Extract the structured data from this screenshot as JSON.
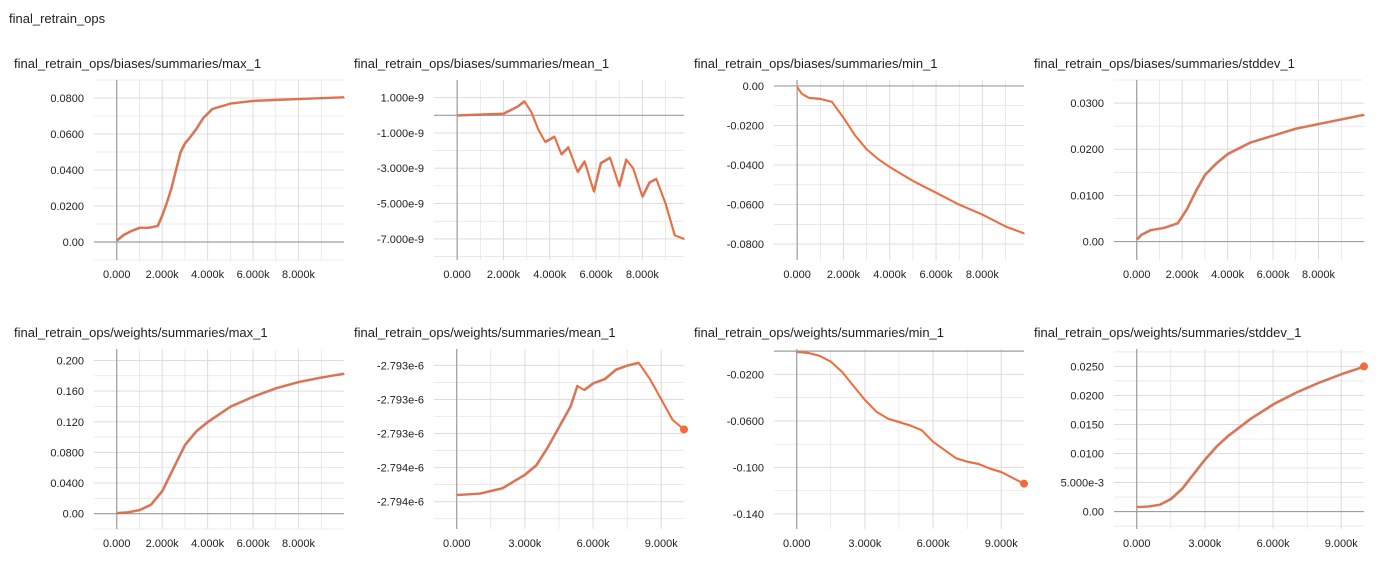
{
  "page": {
    "group_title": "final_retrain_ops"
  },
  "theme": {
    "line_color": "#f26b3a",
    "shadow_color": "#3b6ea8",
    "grid_color": "#dddddd",
    "axis_color": "#9e9e9e"
  },
  "chart_data": [
    {
      "type": "line",
      "title": "final_retrain_ops/biases/summaries/max_1",
      "xlim": [
        -1000,
        10000
      ],
      "ylim": [
        -0.01,
        0.09
      ],
      "xticks": [
        0,
        2000,
        4000,
        6000,
        8000
      ],
      "xtick_labels": [
        "0.000",
        "2.000k",
        "4.000k",
        "6.000k",
        "8.000k"
      ],
      "yticks": [
        0,
        0.02,
        0.04,
        0.06,
        0.08
      ],
      "ytick_labels": [
        "0.00",
        "0.0200",
        "0.0400",
        "0.0600",
        "0.0800"
      ],
      "end_marker": false,
      "series": [
        {
          "x": [
            0,
            300,
            600,
            1000,
            1400,
            1800,
            2000,
            2200,
            2400,
            2600,
            2800,
            3000,
            3200,
            3500,
            3800,
            4200,
            5000,
            6000,
            7000,
            8000,
            9000,
            10000
          ],
          "y": [
            0.001,
            0.004,
            0.006,
            0.008,
            0.008,
            0.009,
            0.015,
            0.022,
            0.03,
            0.04,
            0.05,
            0.055,
            0.058,
            0.063,
            0.069,
            0.074,
            0.077,
            0.0785,
            0.079,
            0.0795,
            0.08,
            0.0805
          ]
        }
      ]
    },
    {
      "type": "line",
      "title": "final_retrain_ops/biases/summaries/mean_1",
      "xlim": [
        -1000,
        9800
      ],
      "ylim": [
        -8.2e-09,
        2e-09
      ],
      "xticks": [
        0,
        2000,
        4000,
        6000,
        8000
      ],
      "xtick_labels": [
        "0.000",
        "2.000k",
        "4.000k",
        "6.000k",
        "8.000k"
      ],
      "yticks": [
        1e-09,
        -1e-09,
        -3e-09,
        -5e-09,
        -7e-09
      ],
      "ytick_labels": [
        "1.000e-9",
        "-1.000e-9",
        "-3.000e-9",
        "-5.000e-9",
        "-7.000e-9"
      ],
      "end_marker": false,
      "series": [
        {
          "x": [
            0,
            1000,
            2000,
            2600,
            2900,
            3200,
            3500,
            3800,
            4200,
            4500,
            4800,
            5200,
            5500,
            5900,
            6200,
            6600,
            7000,
            7300,
            7600,
            8000,
            8300,
            8600,
            9000,
            9400,
            9800
          ],
          "y": [
            0,
            5e-11,
            1e-10,
            5e-10,
            8e-10,
            2e-10,
            -8e-10,
            -1.5e-09,
            -1.2e-09,
            -2.2e-09,
            -1.8e-09,
            -3.2e-09,
            -2.6e-09,
            -4.3e-09,
            -2.7e-09,
            -2.4e-09,
            -4e-09,
            -2.5e-09,
            -3e-09,
            -4.6e-09,
            -3.8e-09,
            -3.6e-09,
            -5e-09,
            -6.8e-09,
            -7e-09
          ]
        }
      ]
    },
    {
      "type": "line",
      "title": "final_retrain_ops/biases/summaries/min_1",
      "xlim": [
        -1000,
        9800
      ],
      "ylim": [
        -0.088,
        0.003
      ],
      "xticks": [
        0,
        2000,
        4000,
        6000,
        8000
      ],
      "xtick_labels": [
        "0.000",
        "2.000k",
        "4.000k",
        "6.000k",
        "8.000k"
      ],
      "yticks": [
        0,
        -0.02,
        -0.04,
        -0.06,
        -0.08
      ],
      "ytick_labels": [
        "0.00",
        "-0.0200",
        "-0.0400",
        "-0.0600",
        "-0.0800"
      ],
      "end_marker": false,
      "series": [
        {
          "x": [
            0,
            200,
            500,
            1000,
            1500,
            2000,
            2500,
            3000,
            3500,
            4000,
            5000,
            6000,
            7000,
            8000,
            9000,
            9800
          ],
          "y": [
            -0.0005,
            -0.004,
            -0.006,
            -0.0065,
            -0.008,
            -0.016,
            -0.025,
            -0.032,
            -0.037,
            -0.041,
            -0.048,
            -0.054,
            -0.06,
            -0.065,
            -0.071,
            -0.0745
          ]
        }
      ]
    },
    {
      "type": "line",
      "title": "final_retrain_ops/biases/summaries/stddev_1",
      "xlim": [
        -1000,
        10000
      ],
      "ylim": [
        -0.004,
        0.035
      ],
      "xticks": [
        0,
        2000,
        4000,
        6000,
        8000
      ],
      "xtick_labels": [
        "0.000",
        "2.000k",
        "4.000k",
        "6.000k",
        "8.000k"
      ],
      "yticks": [
        0,
        0.01,
        0.02,
        0.03
      ],
      "ytick_labels": [
        "0.00",
        "0.0100",
        "0.0200",
        "0.0300"
      ],
      "end_marker": false,
      "series": [
        {
          "x": [
            0,
            200,
            600,
            1200,
            1800,
            2200,
            2600,
            3000,
            3500,
            4000,
            5000,
            6000,
            7000,
            8000,
            9000,
            10000
          ],
          "y": [
            0.0005,
            0.0015,
            0.0025,
            0.003,
            0.004,
            0.007,
            0.011,
            0.0145,
            0.017,
            0.019,
            0.0215,
            0.023,
            0.0245,
            0.0255,
            0.0265,
            0.0275
          ]
        }
      ]
    },
    {
      "type": "line",
      "title": "final_retrain_ops/weights/summaries/max_1",
      "xlim": [
        -1000,
        10000
      ],
      "ylim": [
        -0.02,
        0.215
      ],
      "xticks": [
        0,
        2000,
        4000,
        6000,
        8000
      ],
      "xtick_labels": [
        "0.000",
        "2.000k",
        "4.000k",
        "6.000k",
        "8.000k"
      ],
      "yticks": [
        0,
        0.04,
        0.08,
        0.12,
        0.16,
        0.2
      ],
      "ytick_labels": [
        "0.00",
        "0.0400",
        "0.0800",
        "0.120",
        "0.160",
        "0.200"
      ],
      "end_marker": false,
      "series": [
        {
          "x": [
            0,
            500,
            1000,
            1500,
            2000,
            2500,
            3000,
            3500,
            4000,
            5000,
            6000,
            7000,
            8000,
            9000,
            10000
          ],
          "y": [
            0.001,
            0.002,
            0.005,
            0.012,
            0.03,
            0.06,
            0.09,
            0.108,
            0.12,
            0.14,
            0.153,
            0.164,
            0.172,
            0.178,
            0.183
          ]
        }
      ]
    },
    {
      "type": "line",
      "title": "final_retrain_ops/weights/summaries/mean_1",
      "xlim": [
        -1000,
        10000
      ],
      "ylim": [
        -2.79415e-06,
        -2.79283e-06
      ],
      "xticks": [
        0,
        3000,
        6000,
        9000
      ],
      "xtick_labels": [
        "0.000",
        "3.000k",
        "6.000k",
        "9.000k"
      ],
      "yticks": [
        -2.79295e-06,
        -2.7932e-06,
        -2.79345e-06,
        -2.7937e-06,
        -2.79395e-06
      ],
      "ytick_labels": [
        "-2.793e-6",
        "-2.793e-6",
        "-2.793e-6",
        "-2.794e-6",
        "-2.794e-6"
      ],
      "end_marker": true,
      "series": [
        {
          "x": [
            0,
            1000,
            2000,
            2500,
            3000,
            3500,
            4000,
            4500,
            5000,
            5300,
            5600,
            6000,
            6500,
            7000,
            7500,
            8000,
            8500,
            9000,
            9500,
            10000
          ],
          "y": [
            -2.7939e-06,
            -2.79389e-06,
            -2.79385e-06,
            -2.7938e-06,
            -2.79375e-06,
            -2.79368e-06,
            -2.79355e-06,
            -2.7934e-06,
            -2.79325e-06,
            -2.7931e-06,
            -2.79313e-06,
            -2.79308e-06,
            -2.79305e-06,
            -2.79298e-06,
            -2.79295e-06,
            -2.79293e-06,
            -2.79305e-06,
            -2.7932e-06,
            -2.79335e-06,
            -2.79342e-06
          ]
        }
      ]
    },
    {
      "type": "line",
      "title": "final_retrain_ops/weights/summaries/min_1",
      "xlim": [
        -1000,
        10000
      ],
      "ylim": [
        -0.153,
        0.0018
      ],
      "xticks": [
        0,
        3000,
        6000,
        9000
      ],
      "xtick_labels": [
        "0.000",
        "3.000k",
        "6.000k",
        "9.000k"
      ],
      "yticks": [
        -0.02,
        -0.06,
        -0.1,
        -0.14
      ],
      "ytick_labels": [
        "-0.0200",
        "-0.0600",
        "-0.100",
        "-0.140"
      ],
      "end_marker": true,
      "series": [
        {
          "x": [
            0,
            500,
            1000,
            1500,
            2000,
            2500,
            3000,
            3500,
            4000,
            4500,
            5000,
            5500,
            6000,
            6500,
            7000,
            7500,
            8000,
            8500,
            9000,
            10000
          ],
          "y": [
            -0.0005,
            -0.0015,
            -0.004,
            -0.009,
            -0.018,
            -0.03,
            -0.042,
            -0.052,
            -0.058,
            -0.061,
            -0.064,
            -0.068,
            -0.078,
            -0.085,
            -0.092,
            -0.095,
            -0.097,
            -0.101,
            -0.104,
            -0.114
          ]
        }
      ]
    },
    {
      "type": "line",
      "title": "final_retrain_ops/weights/summaries/stddev_1",
      "xlim": [
        -1000,
        10000
      ],
      "ylim": [
        -0.003,
        0.028
      ],
      "xticks": [
        0,
        3000,
        6000,
        9000
      ],
      "xtick_labels": [
        "0.000",
        "3.000k",
        "6.000k",
        "9.000k"
      ],
      "yticks": [
        0,
        0.005,
        0.01,
        0.015,
        0.02,
        0.025
      ],
      "ytick_labels": [
        "0.00",
        "5.000e-3",
        "0.0100",
        "0.0150",
        "0.0200",
        "0.0250"
      ],
      "end_marker": true,
      "series": [
        {
          "x": [
            0,
            500,
            1000,
            1500,
            2000,
            2500,
            3000,
            3500,
            4000,
            5000,
            6000,
            7000,
            8000,
            9000,
            10000
          ],
          "y": [
            0.0008,
            0.0009,
            0.0012,
            0.0022,
            0.004,
            0.0065,
            0.009,
            0.0112,
            0.013,
            0.016,
            0.0185,
            0.0205,
            0.0222,
            0.0237,
            0.025
          ]
        }
      ]
    }
  ]
}
